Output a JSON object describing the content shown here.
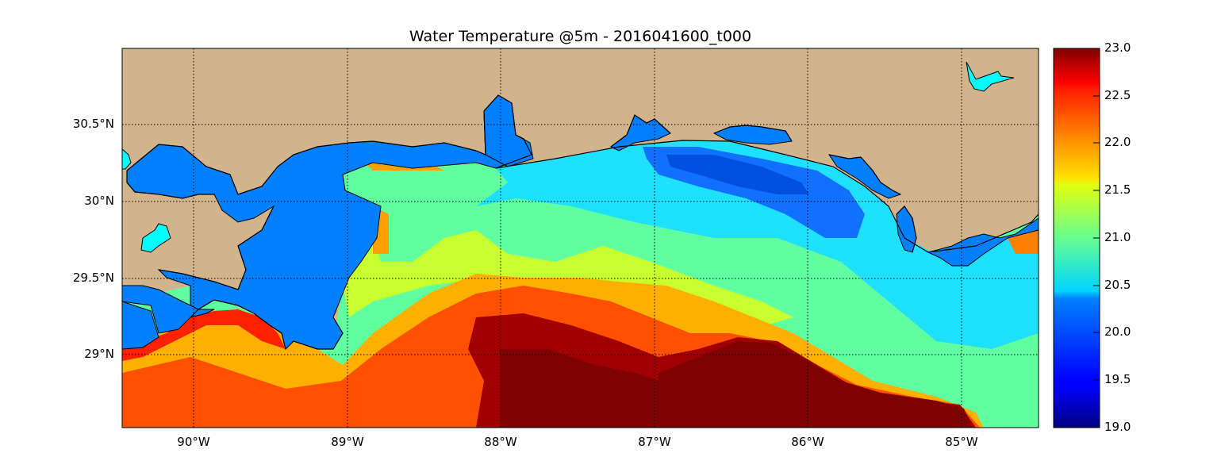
{
  "title": "Water Temperature @5m - 2016041600_t000",
  "axes": {
    "lat_labels": [
      "30.5°N",
      "30°N",
      "29.5°N",
      "29°N"
    ],
    "lon_labels": [
      "90°W",
      "89°W",
      "88°W",
      "87°W",
      "86°W",
      "85°W"
    ]
  },
  "colorbar": {
    "min": 19.0,
    "max": 23.0,
    "tick_labels": [
      "23.0",
      "22.5",
      "22.0",
      "21.5",
      "21.0",
      "20.5",
      "20.0",
      "19.5",
      "19.0"
    ],
    "colormap": "jet"
  },
  "colors": {
    "land": "#d2b48c",
    "water": "#0080ff",
    "lake": "#00ffff",
    "coastline": "#000000",
    "grid": "#000000"
  }
}
